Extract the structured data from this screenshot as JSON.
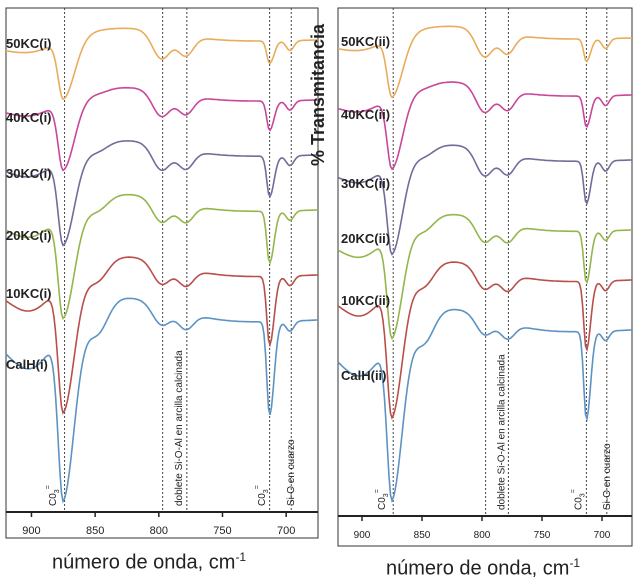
{
  "chart_data": [
    {
      "type": "line",
      "panel": "i",
      "xlabel": "número de onda, cm",
      "xlabel_sup": "-1",
      "ylabel": "",
      "xlim": [
        920,
        675
      ],
      "xticks": [
        900,
        850,
        800,
        750,
        700
      ],
      "grid": false,
      "curve_labels": [
        "50KC(i)",
        "40KC(i)",
        "30KC(i)",
        "20KC(i)",
        "10KC(i)",
        "CalH(i)"
      ],
      "series_colors": [
        "#e8ad5c",
        "#c9479a",
        "#766a9a",
        "#94b64c",
        "#b94f4a",
        "#5d93c3"
      ],
      "annotations": [
        {
          "text": "C0",
          "sub": "3",
          "sup": "=",
          "x": 876
        },
        {
          "text": "doblete Si-O-Al en arcilla calcinada",
          "x": 788
        },
        {
          "text": "C0",
          "sub": "3",
          "sup": "=",
          "x": 712
        },
        {
          "text": "Si-O en cuarzo",
          "x": 700
        }
      ],
      "reference_lines_x": [
        874,
        797,
        778,
        713,
        696
      ]
    },
    {
      "type": "line",
      "panel": "ii",
      "xlabel": "número de onda, cm",
      "xlabel_sup": "-1",
      "ylabel": "% Transmitancia",
      "xlim": [
        920,
        675
      ],
      "xticks": [
        900,
        850,
        800,
        750,
        700
      ],
      "grid": false,
      "curve_labels": [
        "50KC(ii)",
        "40KC(ii)",
        "30KC(ii)",
        "20KC(ii)",
        "10KC(ii)",
        "CalH(ii)"
      ],
      "series_colors": [
        "#e8ad5c",
        "#c9479a",
        "#766a9a",
        "#94b64c",
        "#b94f4a",
        "#5d93c3"
      ],
      "annotations": [
        {
          "text": "C0",
          "sub": "3",
          "sup": "=",
          "x": 876
        },
        {
          "text": "doblete Si-O-Al en arcilla calcinada",
          "x": 788
        },
        {
          "text": "C0",
          "sub": "3",
          "sup": "=",
          "x": 712
        },
        {
          "text": "Si-O en cuarzo",
          "x": 700
        }
      ],
      "reference_lines_x": [
        874,
        797,
        778,
        713,
        696
      ]
    }
  ]
}
